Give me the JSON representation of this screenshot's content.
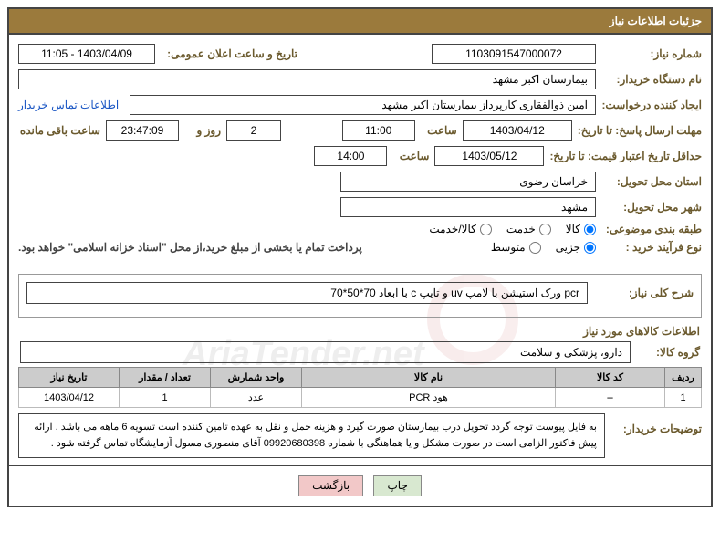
{
  "header": "جزئیات اطلاعات نیاز",
  "labels": {
    "need_no": "شماره نیاز:",
    "announce_dt": "تاریخ و ساعت اعلان عمومی:",
    "buyer_org": "نام دستگاه خریدار:",
    "requester": "ایجاد کننده درخواست:",
    "contact_link": "اطلاعات تماس خریدار",
    "deadline": "مهلت ارسال پاسخ: تا تاریخ:",
    "hour": "ساعت",
    "hour2": "ساعت",
    "days_and": "روز و",
    "remaining": "ساعت باقی مانده",
    "min_validity": "حداقل تاریخ اعتبار قیمت: تا تاریخ:",
    "province": "استان محل تحویل:",
    "city": "شهر محل تحویل:",
    "category": "طبقه بندی موضوعی:",
    "process": "نوع فرآیند خرید :",
    "desc_title": "شرح کلی نیاز:",
    "items_title": "اطلاعات کالاهای مورد نیاز",
    "group": "گروه کالا:",
    "buyer_notes": "توضیحات خریدار:"
  },
  "values": {
    "need_no": "1103091547000072",
    "announce_dt": "1403/04/09 - 11:05",
    "buyer_org": "بیمارستان اکبر مشهد",
    "requester": "امین ذوالفقاری کارپرداز بیمارستان اکبر مشهد",
    "deadline_date": "1403/04/12",
    "deadline_hour": "11:00",
    "remain_days": "2",
    "remain_time": "23:47:09",
    "validity_date": "1403/05/12",
    "validity_hour": "14:00",
    "province": "خراسان رضوی",
    "city": "مشهد",
    "payment_note": "پرداخت تمام یا بخشی از مبلغ خرید،از محل \"اسناد خزانه اسلامی\" خواهد بود.",
    "description": "pcr ورک استیشن با لامپ uv و تایپ c با ابعاد 70*50*70",
    "group": "دارو، پزشکی و سلامت",
    "buyer_notes": "به فایل پیوست توجه گردد تحویل درب بیمارستان صورت گیرد و هزینه حمل و نقل به عهده تامین کننده است  تسویه 6 ماهه می باشد . ارائه پیش فاکتور الزامی است در صورت مشکل و یا هماهنگی با شماره 09920680398 آقای منصوری مسول آزمایشگاه تماس گرفته شود ."
  },
  "radios": {
    "category": [
      {
        "label": "کالا",
        "checked": true
      },
      {
        "label": "خدمت",
        "checked": false
      },
      {
        "label": "کالا/خدمت",
        "checked": false
      }
    ],
    "process": [
      {
        "label": "جزیی",
        "checked": true
      },
      {
        "label": "متوسط",
        "checked": false
      }
    ]
  },
  "table": {
    "headers": [
      "ردیف",
      "کد کالا",
      "نام کالا",
      "واحد شمارش",
      "تعداد / مقدار",
      "تاریخ نیاز"
    ],
    "rows": [
      [
        "1",
        "--",
        "هود PCR",
        "عدد",
        "1",
        "1403/04/12"
      ]
    ]
  },
  "buttons": {
    "print": "چاپ",
    "back": "بازگشت"
  },
  "watermark": "AriaTender.net"
}
